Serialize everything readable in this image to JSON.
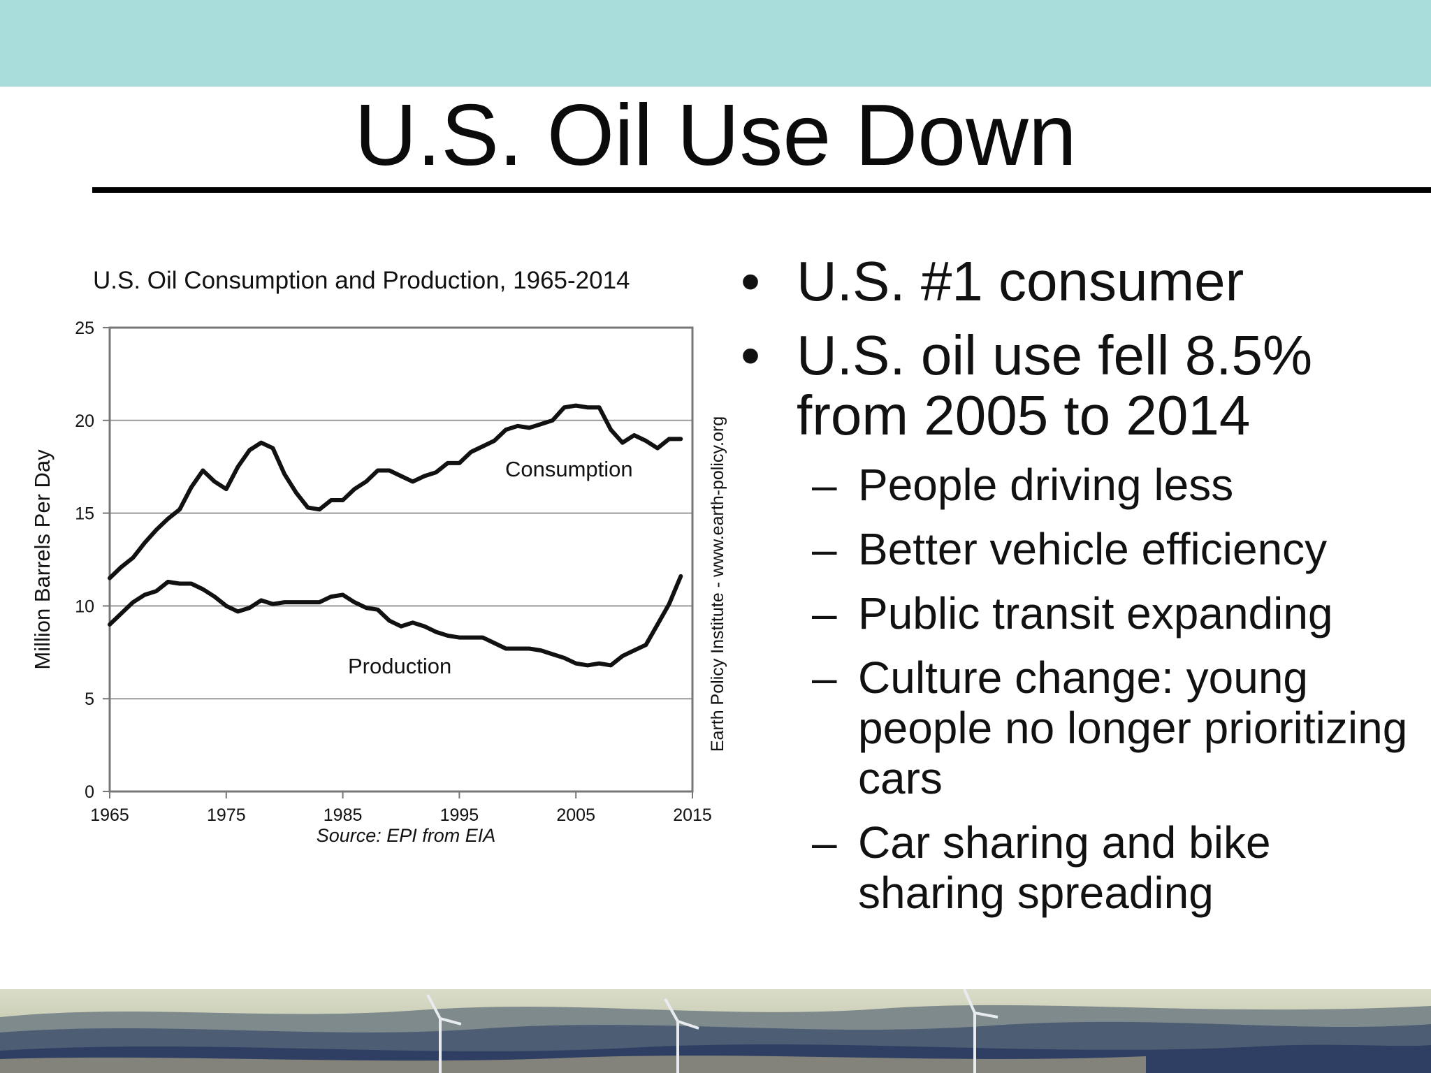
{
  "slide": {
    "title": "U.S. Oil Use Down",
    "colors": {
      "top_band": "#a8dcd8",
      "rule": "#000000",
      "text": "#111111"
    }
  },
  "bullets": [
    {
      "text": "U.S. #1 consumer"
    },
    {
      "text": "U.S. oil use fell 8.5% from 2005 to 2014",
      "children": [
        "People driving less",
        "Better vehicle efficiency",
        "Public transit expanding",
        "Culture change: young people no longer prioritizing cars",
        "Car sharing and bike sharing spreading"
      ]
    }
  ],
  "chart_data": {
    "type": "line",
    "title": "U.S. Oil Consumption and Production, 1965-2014",
    "xlabel": "",
    "ylabel": "Million Barrels Per Day",
    "source": "Source: EPI from EIA",
    "side_credit": "Earth Policy Institute - www.earth-policy.org",
    "xlim": [
      1965,
      2015
    ],
    "ylim": [
      0,
      25
    ],
    "xticks": [
      1965,
      1975,
      1985,
      1995,
      2005,
      2015
    ],
    "yticks": [
      0,
      5,
      10,
      15,
      20,
      25
    ],
    "grid": true,
    "x": [
      1965,
      1966,
      1967,
      1968,
      1969,
      1970,
      1971,
      1972,
      1973,
      1974,
      1975,
      1976,
      1977,
      1978,
      1979,
      1980,
      1981,
      1982,
      1983,
      1984,
      1985,
      1986,
      1987,
      1988,
      1989,
      1990,
      1991,
      1992,
      1993,
      1994,
      1995,
      1996,
      1997,
      1998,
      1999,
      2000,
      2001,
      2002,
      2003,
      2004,
      2005,
      2006,
      2007,
      2008,
      2009,
      2010,
      2011,
      2012,
      2013,
      2014
    ],
    "series": [
      {
        "name": "Consumption",
        "values": [
          11.5,
          12.1,
          12.6,
          13.4,
          14.1,
          14.7,
          15.2,
          16.4,
          17.3,
          16.7,
          16.3,
          17.5,
          18.4,
          18.8,
          18.5,
          17.1,
          16.1,
          15.3,
          15.2,
          15.7,
          15.7,
          16.3,
          16.7,
          17.3,
          17.3,
          17.0,
          16.7,
          17.0,
          17.2,
          17.7,
          17.7,
          18.3,
          18.6,
          18.9,
          19.5,
          19.7,
          19.6,
          19.8,
          20.0,
          20.7,
          20.8,
          20.7,
          20.7,
          19.5,
          18.8,
          19.2,
          18.9,
          18.5,
          19.0,
          19.0
        ]
      },
      {
        "name": "Production",
        "values": [
          9.0,
          9.6,
          10.2,
          10.6,
          10.8,
          11.3,
          11.2,
          11.2,
          10.9,
          10.5,
          10.0,
          9.7,
          9.9,
          10.3,
          10.1,
          10.2,
          10.2,
          10.2,
          10.2,
          10.5,
          10.6,
          10.2,
          9.9,
          9.8,
          9.2,
          8.9,
          9.1,
          8.9,
          8.6,
          8.4,
          8.3,
          8.3,
          8.3,
          8.0,
          7.7,
          7.7,
          7.7,
          7.6,
          7.4,
          7.2,
          6.9,
          6.8,
          6.9,
          6.8,
          7.3,
          7.6,
          7.9,
          9.0,
          10.1,
          11.6
        ]
      }
    ]
  }
}
